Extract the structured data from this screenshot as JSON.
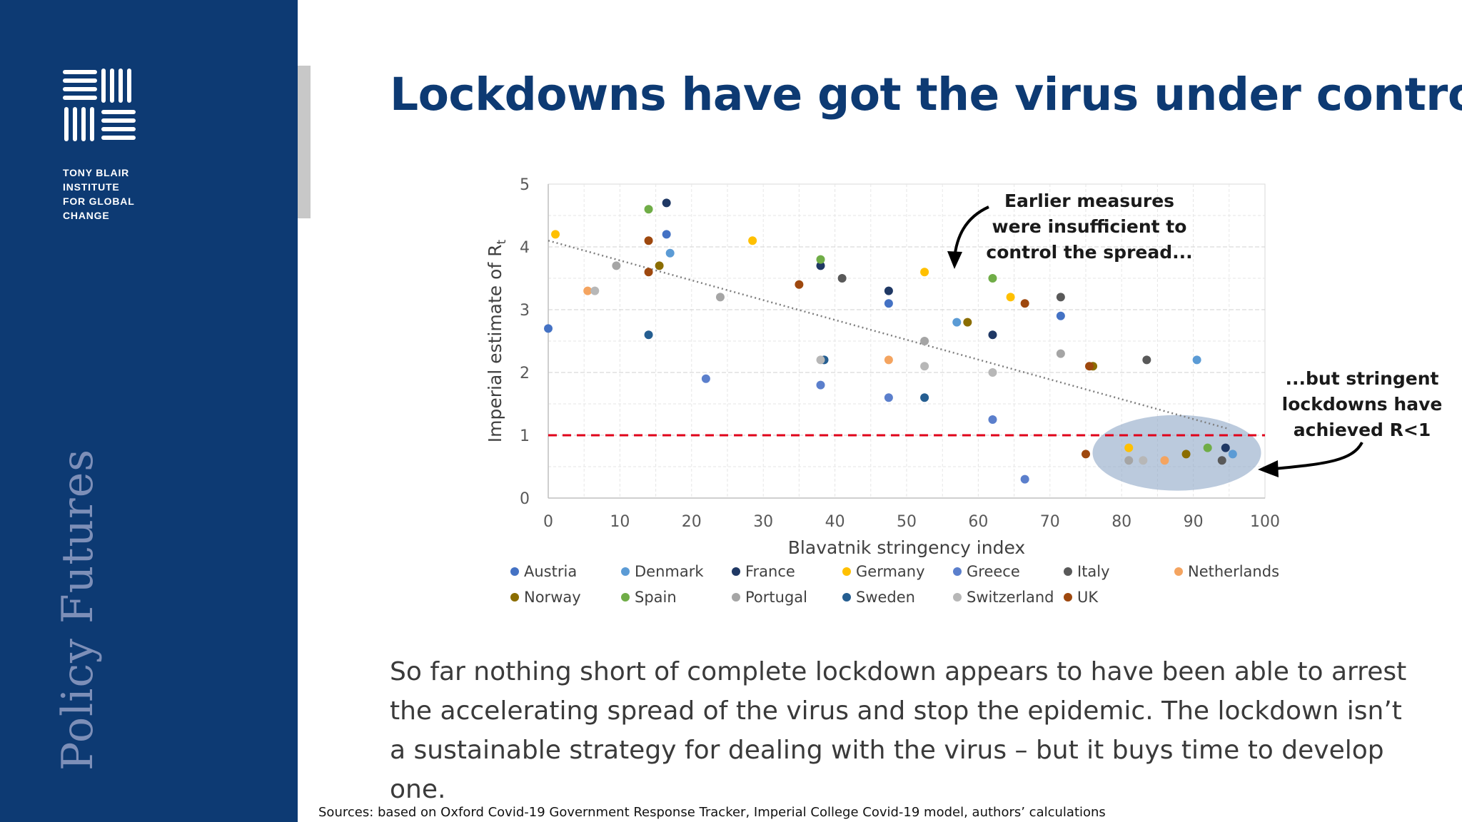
{
  "org": {
    "lines": [
      "TONY BLAIR",
      "INSTITUTE",
      "FOR GLOBAL",
      "CHANGE"
    ],
    "series": "Policy Futures"
  },
  "title": "Lockdowns have got the virus under control",
  "body_text": "So far nothing short of complete lockdown appears to have been able to arrest the accelerating spread of the virus and stop the epidemic. The lockdown isn’t a sustainable strategy for dealing with the virus – but it buys time to develop one.",
  "sources": "Sources: based on Oxford Covid-19 Government Response Tracker, Imperial College Covid-19 model, authors’ calculations",
  "colors": {
    "brand": "#0d3a73",
    "threshold": "#e0001a",
    "ellipse": "#8ea7c7"
  },
  "chart_data": {
    "type": "scatter",
    "title": "",
    "xlabel": "Blavatnik stringency index",
    "ylabel": "Imperial estimate of R",
    "ylabel_sub": "t",
    "xlim": [
      0,
      100
    ],
    "ylim": [
      0,
      5
    ],
    "xticks": [
      0,
      10,
      20,
      30,
      40,
      50,
      60,
      70,
      80,
      90,
      100
    ],
    "yticks": [
      0,
      1,
      2,
      3,
      4,
      5
    ],
    "grid": true,
    "legend_position": "bottom",
    "threshold_line": {
      "y": 1,
      "style": "dashed"
    },
    "trendline": {
      "x": [
        0,
        95
      ],
      "y": [
        4.1,
        1.1
      ],
      "style": "dotted"
    },
    "annotations": [
      {
        "name": "earlier-measures",
        "lines": [
          "Earlier measures",
          "were insufficient to",
          "control the spread..."
        ]
      },
      {
        "name": "stringent-lockdowns",
        "lines": [
          "...but stringent",
          "lockdowns have",
          "achieved R<1"
        ]
      }
    ],
    "series": [
      {
        "name": "Austria",
        "color": "#4472c4",
        "points": [
          [
            16.5,
            4.2
          ],
          [
            47.5,
            3.1
          ],
          [
            71.5,
            2.9
          ],
          [
            0,
            2.7
          ]
        ]
      },
      {
        "name": "Denmark",
        "color": "#5b9bd5",
        "points": [
          [
            17,
            3.9
          ],
          [
            57,
            2.8
          ],
          [
            90.5,
            2.2
          ],
          [
            95.5,
            0.7
          ]
        ]
      },
      {
        "name": "France",
        "color": "#1f3864",
        "points": [
          [
            16.5,
            4.7
          ],
          [
            38,
            3.7
          ],
          [
            47.5,
            3.3
          ],
          [
            62,
            2.6
          ],
          [
            94.5,
            0.8
          ]
        ]
      },
      {
        "name": "Germany",
        "color": "#ffc000",
        "points": [
          [
            1,
            4.2
          ],
          [
            28.5,
            4.1
          ],
          [
            52.5,
            3.6
          ],
          [
            64.5,
            3.2
          ],
          [
            81,
            0.8
          ]
        ]
      },
      {
        "name": "Greece",
        "color": "#5b7fcc",
        "points": [
          [
            22,
            1.9
          ],
          [
            38,
            1.8
          ],
          [
            47.5,
            1.6
          ],
          [
            62,
            1.25
          ],
          [
            66.5,
            0.3
          ]
        ]
      },
      {
        "name": "Italy",
        "color": "#595959",
        "points": [
          [
            41,
            3.5
          ],
          [
            71.5,
            3.2
          ],
          [
            83.5,
            2.2
          ],
          [
            94,
            0.6
          ]
        ]
      },
      {
        "name": "Netherlands",
        "color": "#f4a460",
        "points": [
          [
            5.5,
            3.3
          ],
          [
            47.5,
            2.2
          ],
          [
            86,
            0.6
          ]
        ]
      },
      {
        "name": "Norway",
        "color": "#8b6d00",
        "points": [
          [
            15.5,
            3.7
          ],
          [
            58.5,
            2.8
          ],
          [
            76,
            2.1
          ],
          [
            89,
            0.7
          ]
        ]
      },
      {
        "name": "Spain",
        "color": "#70ad47",
        "points": [
          [
            14,
            4.6
          ],
          [
            38,
            3.8
          ],
          [
            62,
            3.5
          ],
          [
            92,
            0.8
          ]
        ]
      },
      {
        "name": "Portugal",
        "color": "#a5a5a5",
        "points": [
          [
            9.5,
            3.7
          ],
          [
            24,
            3.2
          ],
          [
            52.5,
            2.5
          ],
          [
            71.5,
            2.3
          ],
          [
            81,
            0.6
          ]
        ]
      },
      {
        "name": "Sweden",
        "color": "#255e91",
        "points": [
          [
            14,
            2.6
          ],
          [
            38.5,
            2.2
          ],
          [
            52.5,
            1.6
          ]
        ]
      },
      {
        "name": "Switzerland",
        "color": "#b7b7b7",
        "points": [
          [
            6.5,
            3.3
          ],
          [
            38,
            2.2
          ],
          [
            52.5,
            2.1
          ],
          [
            62,
            2.0
          ],
          [
            83,
            0.6
          ]
        ]
      },
      {
        "name": "UK",
        "color": "#9e480e",
        "points": [
          [
            14,
            4.1
          ],
          [
            14,
            3.6
          ],
          [
            35,
            3.4
          ],
          [
            66.5,
            3.1
          ],
          [
            75.5,
            2.1
          ],
          [
            75,
            0.7
          ]
        ]
      }
    ]
  }
}
